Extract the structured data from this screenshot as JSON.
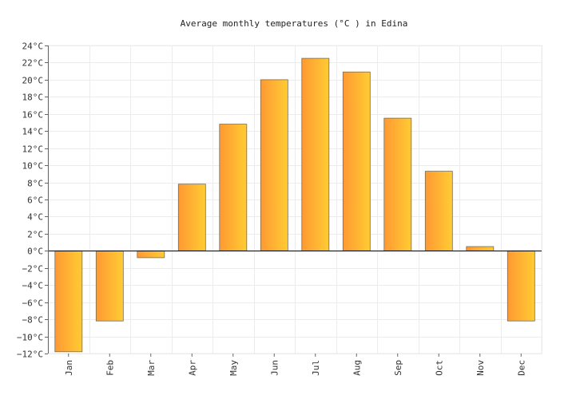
{
  "chart_data": {
    "type": "bar",
    "title": "Average monthly temperatures (°C ) in Edina",
    "categories": [
      "Jan",
      "Feb",
      "Mar",
      "Apr",
      "May",
      "Jun",
      "Jul",
      "Aug",
      "Sep",
      "Oct",
      "Nov",
      "Dec"
    ],
    "values": [
      -11.8,
      -8.2,
      -0.8,
      7.8,
      14.8,
      20.0,
      22.5,
      20.9,
      15.5,
      9.3,
      0.5,
      -8.2
    ],
    "ylim": [
      -12,
      24
    ],
    "ytick_step": 2,
    "ytick_labels": [
      "−12°C",
      "−10°C",
      "−8°C",
      "−6°C",
      "−4°C",
      "−2°C",
      "0°C",
      "2°C",
      "4°C",
      "6°C",
      "8°C",
      "10°C",
      "12°C",
      "14°C",
      "16°C",
      "18°C",
      "20°C",
      "22°C",
      "24°C"
    ],
    "grid": true,
    "xlabel": "",
    "ylabel": "",
    "colors": {
      "bar_left": "#ff9933",
      "bar_right": "#ffcc33",
      "bar_stroke": "#7a6a4a",
      "grid": "#ececec",
      "zero_line": "#000000"
    }
  }
}
